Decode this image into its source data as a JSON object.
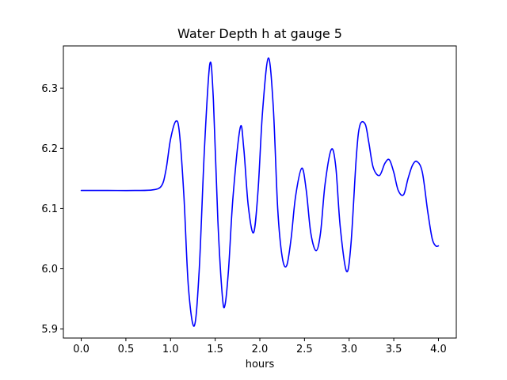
{
  "chart_data": {
    "type": "line",
    "title": "Water Depth h at gauge 5",
    "xlabel": "hours",
    "ylabel": "",
    "xlim": [
      -0.2,
      4.2
    ],
    "ylim": [
      5.885,
      6.37
    ],
    "grid": false,
    "xticks": [
      0.0,
      0.5,
      1.0,
      1.5,
      2.0,
      2.5,
      3.0,
      3.5,
      4.0
    ],
    "xtick_labels": [
      "0.0",
      "0.5",
      "1.0",
      "1.5",
      "2.0",
      "2.5",
      "3.0",
      "3.5",
      "4.0"
    ],
    "yticks": [
      5.9,
      6.0,
      6.1,
      6.2,
      6.3
    ],
    "ytick_labels": [
      "5.9",
      "6.0",
      "6.1",
      "6.2",
      "6.3"
    ],
    "series": [
      {
        "color": "#0000ff",
        "x": [
          0.0,
          0.3,
          0.6,
          0.8,
          0.9,
          0.95,
          1.0,
          1.06,
          1.1,
          1.15,
          1.2,
          1.265,
          1.32,
          1.38,
          1.44,
          1.48,
          1.53,
          1.58,
          1.61,
          1.65,
          1.7,
          1.78,
          1.82,
          1.87,
          1.93,
          1.98,
          2.03,
          2.095,
          2.15,
          2.2,
          2.25,
          2.3,
          2.35,
          2.4,
          2.47,
          2.52,
          2.57,
          2.63,
          2.68,
          2.73,
          2.8,
          2.85,
          2.9,
          2.97,
          3.02,
          3.08,
          3.12,
          3.18,
          3.22,
          3.27,
          3.34,
          3.4,
          3.45,
          3.5,
          3.55,
          3.61,
          3.66,
          3.71,
          3.76,
          3.82,
          3.88,
          3.93,
          3.97,
          4.0
        ],
        "y": [
          6.13,
          6.13,
          6.13,
          6.131,
          6.138,
          6.165,
          6.215,
          6.245,
          6.225,
          6.12,
          5.97,
          5.905,
          5.995,
          6.2,
          6.34,
          6.28,
          6.08,
          5.955,
          5.94,
          6.0,
          6.12,
          6.234,
          6.2,
          6.105,
          6.06,
          6.13,
          6.26,
          6.35,
          6.27,
          6.1,
          6.02,
          6.005,
          6.05,
          6.12,
          6.167,
          6.13,
          6.06,
          6.03,
          6.06,
          6.14,
          6.198,
          6.17,
          6.07,
          5.996,
          6.04,
          6.185,
          6.238,
          6.24,
          6.21,
          6.168,
          6.155,
          6.175,
          6.181,
          6.16,
          6.13,
          6.123,
          6.15,
          6.172,
          6.178,
          6.16,
          6.095,
          6.05,
          6.038,
          6.038
        ]
      }
    ]
  }
}
